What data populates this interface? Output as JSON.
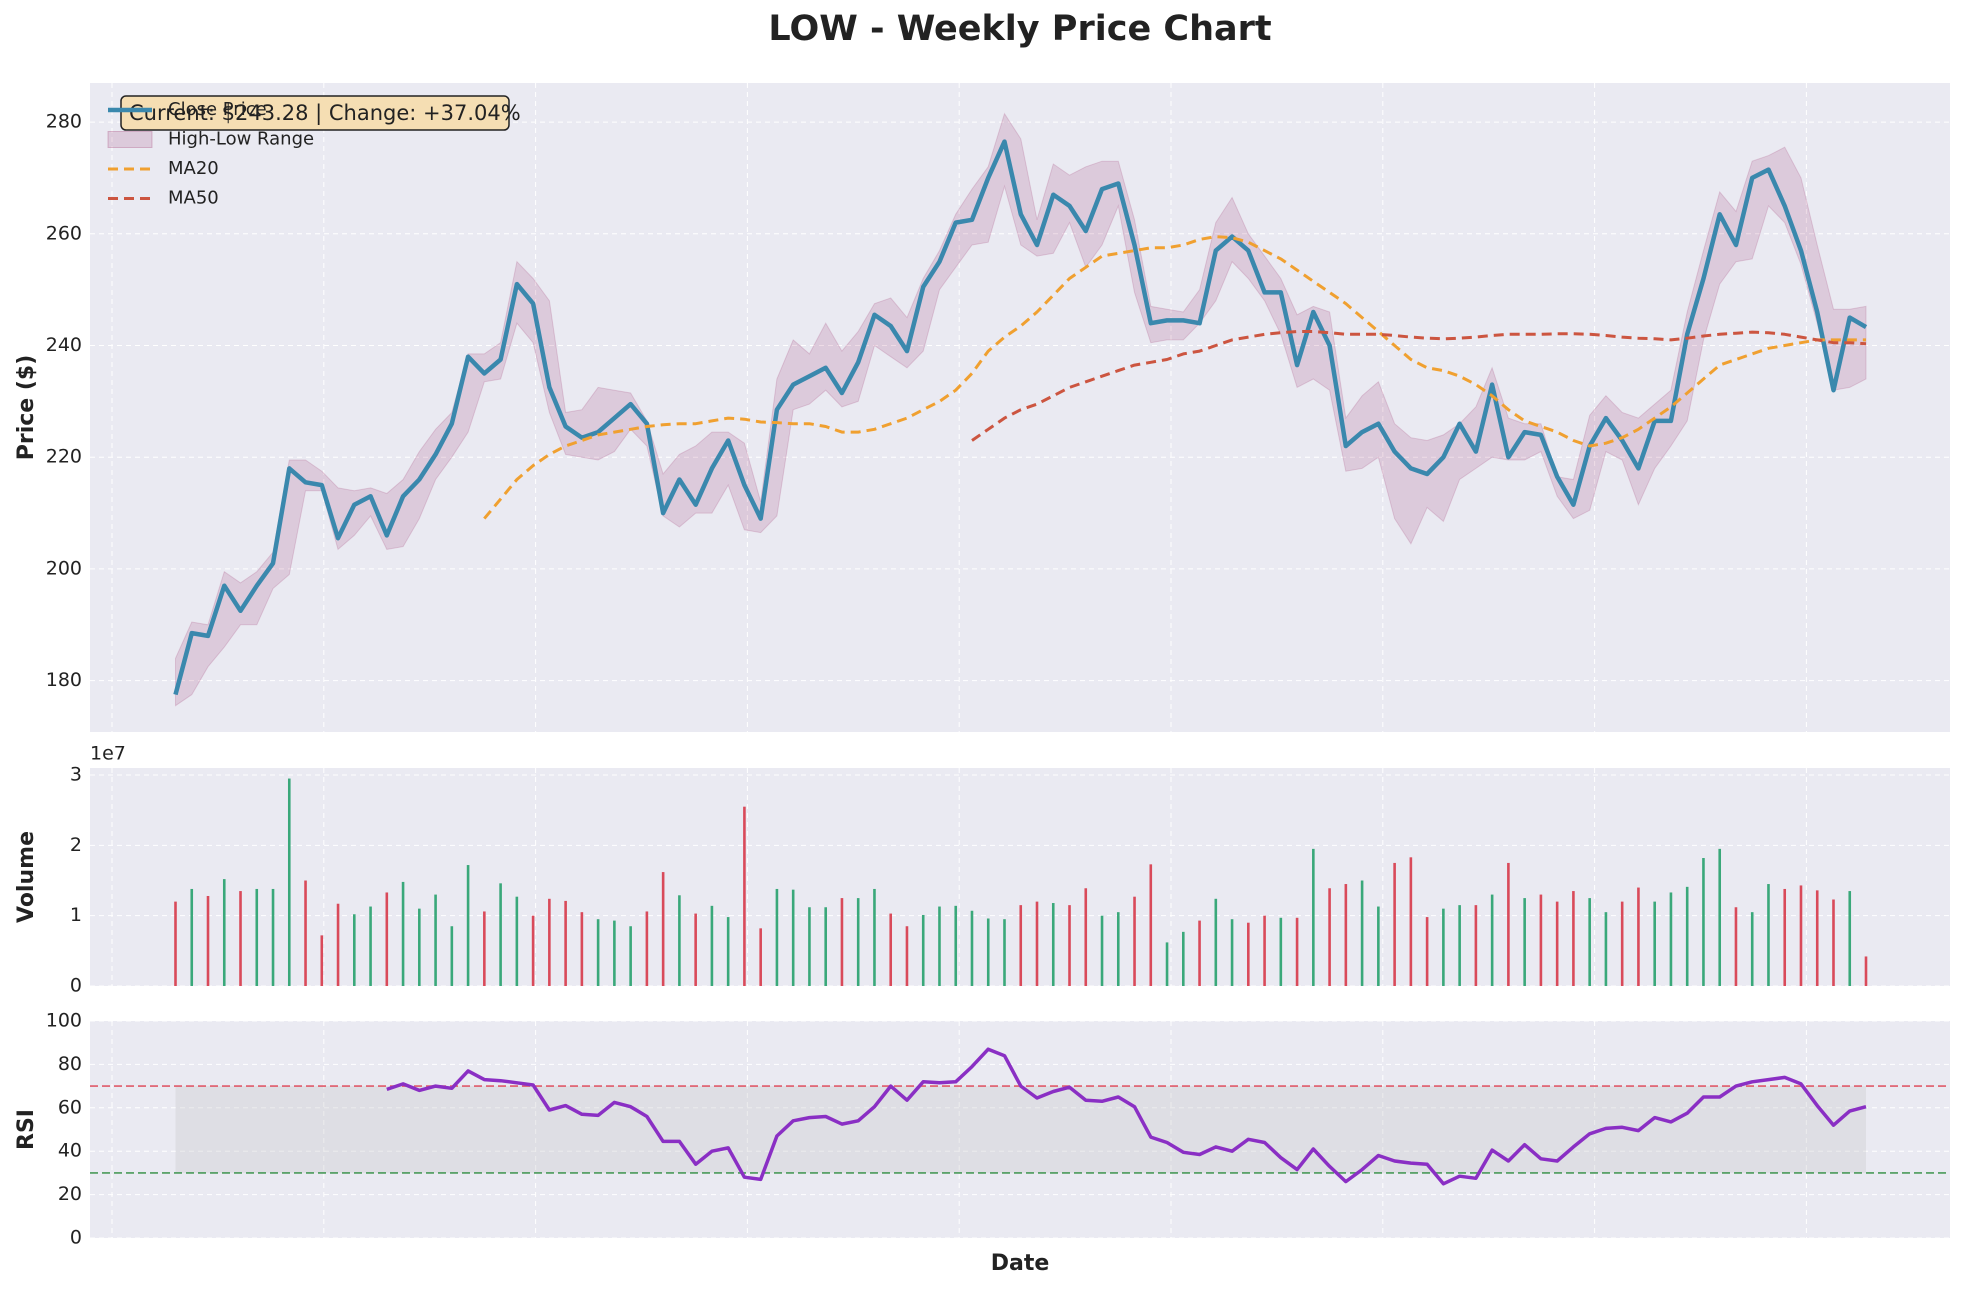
{
  "chart_data": [
    {
      "type": "line",
      "title": "LOW - Weekly Price Chart",
      "y_label": "Price ($)",
      "annotation": "Current: $243.28 | Change: +37.04%",
      "ylim": [
        170.8,
        287
      ],
      "yticks": [
        180,
        200,
        220,
        240,
        260,
        280
      ],
      "grid": true,
      "legend": "upper left",
      "series": [
        {
          "name": "Close Price",
          "color": "#3a88ad",
          "values": [
            177.5,
            188.5,
            188,
            197,
            192.5,
            197,
            201,
            218,
            215.5,
            215,
            205.5,
            211.5,
            213,
            206,
            213,
            216,
            220.5,
            226,
            238,
            235,
            237.5,
            251,
            247.5,
            232.5,
            225.5,
            223.5,
            224.5,
            227,
            229.5,
            226,
            210,
            216,
            211.5,
            218,
            223,
            215,
            209,
            228.5,
            233,
            234.5,
            236,
            231.5,
            237,
            245.5,
            243.5,
            239,
            250.5,
            255,
            262,
            262.5,
            270,
            276.5,
            263.5,
            258,
            267,
            265,
            260.5,
            268,
            269,
            258,
            244,
            244.5,
            244.5,
            244,
            257,
            259.5,
            257,
            249.5,
            249.5,
            236.5,
            246,
            240,
            222,
            224.5,
            226,
            221,
            218,
            217,
            220,
            226,
            221,
            233,
            220,
            224.5,
            224,
            216.5,
            211.5,
            222,
            227,
            223,
            218,
            226.5,
            226.5,
            242,
            252,
            263.5,
            258,
            270,
            271.5,
            265,
            257,
            246,
            232,
            245,
            243.3
          ]
        },
        {
          "name": "High-Low Range",
          "type": "band",
          "color": "#a23b72",
          "high": [
            184,
            190.5,
            190,
            199.5,
            197.5,
            199.5,
            203,
            219.5,
            219.5,
            217.5,
            214.5,
            214,
            214.5,
            213.5,
            216,
            221,
            225,
            228,
            238.5,
            238.5,
            240.5,
            255,
            252,
            248,
            228,
            228.5,
            232.5,
            232,
            231.5,
            226.5,
            217,
            220.5,
            222,
            224.5,
            224.5,
            222.5,
            212,
            234,
            241,
            238.5,
            244,
            239,
            242.5,
            247.5,
            248.5,
            245,
            252,
            257,
            263.5,
            268,
            272,
            281.5,
            277,
            262.5,
            272.5,
            270.5,
            272,
            273,
            273,
            262.5,
            247,
            246.5,
            246,
            250,
            262,
            266.5,
            260,
            256,
            252,
            245.5,
            247,
            246,
            227,
            231,
            233.5,
            226,
            223.5,
            223,
            224,
            226,
            229,
            236,
            227,
            226,
            226,
            216.5,
            216,
            227.5,
            231,
            228,
            227,
            229.5,
            232,
            246,
            257,
            267.5,
            264,
            273,
            274,
            275.5,
            270,
            258,
            246.5,
            246.5,
            247
          ],
          "low": [
            175.5,
            177.5,
            182.5,
            186,
            190,
            190,
            196.5,
            199,
            214,
            214,
            203.5,
            206,
            209.5,
            203.5,
            204,
            209,
            216,
            220,
            224.5,
            233.5,
            234,
            244,
            240.5,
            228,
            220.5,
            220,
            219.5,
            221,
            225,
            222,
            209.5,
            207.5,
            210,
            210,
            215,
            207,
            206.5,
            209.5,
            228.5,
            229.5,
            232,
            229,
            230,
            240,
            238,
            236,
            239,
            250,
            254,
            258,
            258.5,
            268.5,
            258,
            256,
            256.5,
            262,
            254,
            258,
            265,
            249.5,
            240.5,
            241,
            241,
            244,
            248,
            255,
            252,
            248,
            242,
            232.5,
            234,
            232,
            217.5,
            218,
            220,
            209,
            204.5,
            211,
            208.5,
            216,
            218,
            220,
            219.5,
            219.5,
            221,
            213,
            209,
            210.5,
            221,
            219.5,
            211.5,
            218,
            222,
            226.5,
            241,
            251,
            255,
            255.5,
            265,
            262,
            254.5,
            244,
            232,
            232.5,
            234
          ]
        },
        {
          "name": "MA20",
          "color": "#f0a030",
          "style": "dashed",
          "values": [
            null,
            null,
            null,
            null,
            null,
            null,
            null,
            null,
            null,
            null,
            null,
            null,
            null,
            null,
            null,
            null,
            null,
            null,
            null,
            209,
            212.5,
            216,
            218.5,
            220.5,
            222,
            223,
            224,
            224.5,
            225,
            225.5,
            225.8,
            226,
            226,
            226.5,
            227,
            226.8,
            226.3,
            226.2,
            226,
            226,
            225.5,
            224.5,
            224.5,
            225,
            226,
            227,
            228.5,
            230,
            232,
            235,
            239,
            241.5,
            243.5,
            246,
            249,
            252,
            254,
            256,
            256.5,
            257,
            257.5,
            257.5,
            258,
            259,
            259.5,
            259.3,
            258.5,
            257,
            255.5,
            253.5,
            251.5,
            249.5,
            247.5,
            245,
            242.5,
            240,
            237.5,
            236,
            235.5,
            234.5,
            233,
            231,
            228.5,
            226.5,
            225.5,
            224.5,
            223,
            222,
            222.5,
            223.5,
            225,
            227,
            229,
            231.5,
            234,
            236.5,
            237.5,
            238.5,
            239.5,
            240,
            240.5,
            241,
            241,
            241,
            241
          ]
        },
        {
          "name": "MA50",
          "color": "#cc5540",
          "style": "dashed",
          "values": [
            null,
            null,
            null,
            null,
            null,
            null,
            null,
            null,
            null,
            null,
            null,
            null,
            null,
            null,
            null,
            null,
            null,
            null,
            null,
            null,
            null,
            null,
            null,
            null,
            null,
            null,
            null,
            null,
            null,
            null,
            null,
            null,
            null,
            null,
            null,
            null,
            null,
            null,
            null,
            null,
            null,
            null,
            null,
            null,
            null,
            null,
            null,
            null,
            null,
            223,
            225,
            227,
            228.5,
            229.5,
            231,
            232.5,
            233.5,
            234.5,
            235.5,
            236.5,
            237,
            237.5,
            238.5,
            239,
            240,
            241,
            241.5,
            242,
            242.3,
            242.5,
            242.5,
            242.3,
            242,
            242,
            242,
            241.8,
            241.5,
            241.3,
            241.2,
            241.3,
            241.5,
            241.8,
            242,
            242,
            242,
            242.1,
            242.1,
            242,
            241.8,
            241.5,
            241.3,
            241.2,
            241,
            241.3,
            241.7,
            242,
            242.2,
            242.4,
            242.3,
            242,
            241.5,
            241,
            240.5,
            240.5,
            240.3
          ]
        }
      ]
    },
    {
      "type": "bar",
      "y_label": "Volume",
      "offset_label": "1e7",
      "ylim": [
        0,
        3.1
      ],
      "yticks": [
        0,
        1,
        2,
        3
      ],
      "grid": true,
      "up_color": "#3aa87a",
      "down_color": "#d94a5a",
      "values": [
        1.2,
        1.38,
        1.28,
        1.52,
        1.35,
        1.38,
        1.38,
        2.95,
        1.5,
        0.72,
        1.17,
        1.02,
        1.13,
        1.33,
        1.48,
        1.1,
        1.3,
        0.85,
        1.72,
        1.06,
        1.46,
        1.27,
        1.0,
        1.24,
        1.21,
        1.05,
        0.95,
        0.93,
        0.85,
        1.06,
        1.62,
        1.29,
        1.03,
        1.14,
        0.98,
        2.55,
        0.82,
        1.38,
        1.37,
        1.12,
        1.12,
        1.25,
        1.25,
        1.38,
        1.03,
        0.85,
        1.01,
        1.13,
        1.14,
        1.07,
        0.96,
        0.95,
        1.15,
        1.2,
        1.18,
        1.15,
        1.39,
        1.0,
        1.05,
        1.27,
        1.73,
        0.62,
        0.77,
        0.93,
        1.24,
        0.95,
        0.9,
        1.0,
        0.97,
        0.97,
        1.95,
        1.39,
        1.45,
        1.5,
        1.13,
        1.75,
        1.83,
        0.98,
        1.1,
        1.15,
        1.15,
        1.3,
        1.75,
        1.25,
        1.3,
        1.2,
        1.35,
        1.25,
        1.05,
        1.2,
        1.4,
        1.2,
        1.33,
        1.41,
        1.82,
        1.95,
        1.12,
        1.05,
        1.45,
        1.38,
        1.43,
        1.36,
        1.23,
        1.35,
        0.42
      ]
    },
    {
      "type": "line",
      "y_label": "RSI",
      "x_label": "Date",
      "ylim": [
        0,
        100
      ],
      "yticks": [
        0,
        20,
        40,
        60,
        80,
        100
      ],
      "grid": true,
      "color": "#8a2fc4",
      "overbought": 70,
      "oversold": 30,
      "overbought_color": "#e05a6a",
      "oversold_color": "#4a9a5a",
      "band_color": "#c8c8cc",
      "values": [
        null,
        null,
        null,
        null,
        null,
        null,
        null,
        null,
        null,
        null,
        null,
        null,
        null,
        68.5,
        71,
        68,
        70,
        69,
        77,
        73,
        72.5,
        71.5,
        70.5,
        59,
        61,
        57,
        56.5,
        62.5,
        60.5,
        56,
        44.5,
        44.5,
        34,
        40,
        41.5,
        28,
        27,
        47,
        54,
        55.5,
        56,
        52.5,
        54,
        60.5,
        70,
        63.5,
        72,
        71.5,
        72,
        79,
        87,
        84,
        70,
        64.5,
        67.5,
        69.5,
        63.5,
        63,
        65,
        60.5,
        46.5,
        44,
        39.5,
        38.5,
        42,
        40,
        45.5,
        44,
        37,
        31.5,
        41,
        33,
        26,
        31.5,
        38,
        35.5,
        34.5,
        34,
        25,
        28.5,
        27.5,
        40.5,
        35.5,
        43,
        36.5,
        35.5,
        42,
        48,
        50.5,
        51,
        49.5,
        55.5,
        53.5,
        57.5,
        65,
        65,
        70,
        72,
        73,
        74,
        71,
        61,
        52,
        58.5,
        60.5
      ]
    }
  ]
}
